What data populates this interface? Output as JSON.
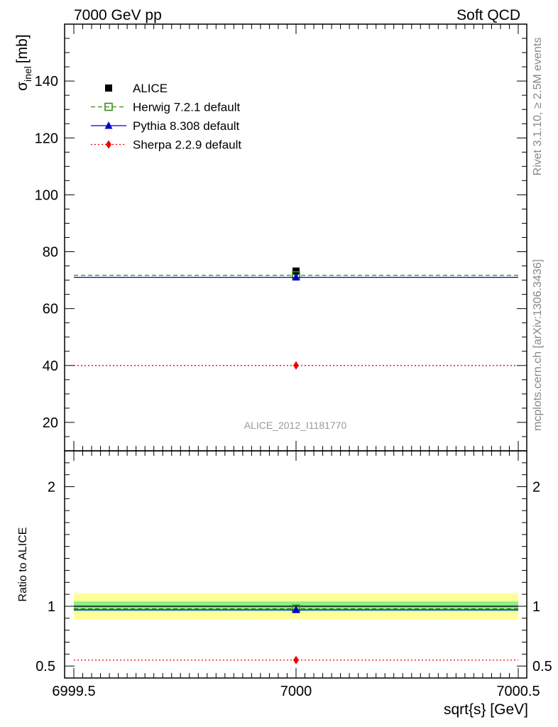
{
  "header": {
    "left": "7000 GeV pp",
    "right": "Soft QCD"
  },
  "side_text": {
    "rivet": "Rivet 3.1.10, ≥ 2.5M events",
    "source": "mcplots.cern.ch [arXiv:1306.3436]"
  },
  "watermark": "ALICE_2012_I1181770",
  "colors": {
    "data": "#000000",
    "herwig": "#3a8c1a",
    "pythia": "#0000cc",
    "sherpa": "#ee0000",
    "band_inner": "#88ee88",
    "band_outer": "#ffff99"
  },
  "chart_data": [
    {
      "type": "scatter",
      "panel": "main",
      "ylabel_symbol": "σ",
      "ylabel_sub": "inel",
      "ylabel_unit": "[mb]",
      "xlim": [
        6999.5,
        7000.5
      ],
      "ylim": [
        10,
        160
      ],
      "yticks": [
        20,
        40,
        60,
        80,
        100,
        120,
        140
      ],
      "x": [
        7000
      ],
      "series": [
        {
          "key": "alice",
          "name": "ALICE",
          "marker": "square",
          "style": "marker",
          "values": [
            73.2
          ]
        },
        {
          "key": "herwig",
          "name": "Herwig 7.2.1 default",
          "marker": "open-square",
          "style": "dashed",
          "values": [
            71.7
          ]
        },
        {
          "key": "pythia",
          "name": "Pythia 8.308 default",
          "marker": "triangle",
          "style": "solid",
          "values": [
            71.0
          ]
        },
        {
          "key": "sherpa",
          "name": "Sherpa 2.2.9 default",
          "marker": "diamond",
          "style": "dotted",
          "values": [
            40.0
          ]
        }
      ],
      "legend_position": "top-left"
    },
    {
      "type": "scatter",
      "panel": "ratio",
      "ylabel": "Ratio to ALICE",
      "xlabel": "sqrt{s} [GeV]",
      "xlim": [
        6999.5,
        7000.5
      ],
      "ylim": [
        0.4,
        2.3
      ],
      "yticks": [
        "0.5",
        "1",
        "2"
      ],
      "xticks": [
        "6999.5",
        "7000",
        "7000.5"
      ],
      "x": [
        7000
      ],
      "reference": 1.0,
      "band_inner": [
        0.96,
        1.04
      ],
      "band_outer": [
        0.89,
        1.11
      ],
      "series": [
        {
          "key": "herwig",
          "name": "Herwig 7.2.1 default",
          "values": [
            0.98
          ]
        },
        {
          "key": "pythia",
          "name": "Pythia 8.308 default",
          "values": [
            0.97
          ]
        },
        {
          "key": "sherpa",
          "name": "Sherpa 2.2.9 default",
          "values": [
            0.55
          ]
        }
      ]
    }
  ]
}
